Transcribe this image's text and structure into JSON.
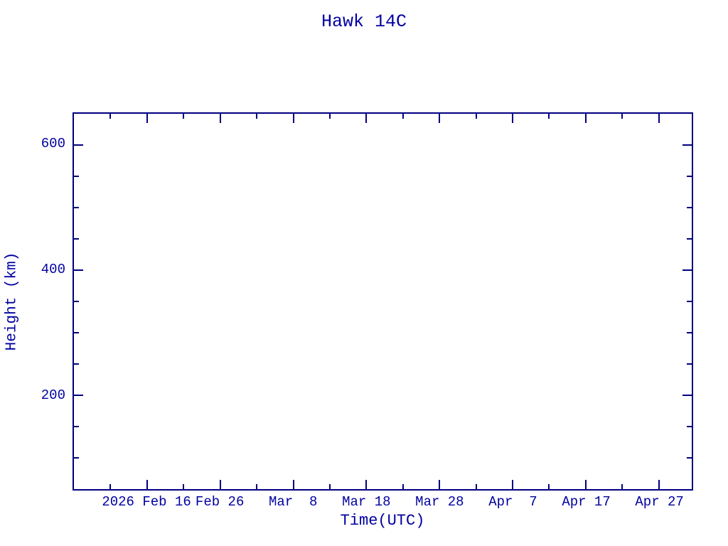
{
  "chart_data": {
    "type": "scatter",
    "title": "Hawk 14C",
    "xlabel": "Time(UTC)",
    "ylabel": "Height (km)",
    "grid": false,
    "series": [],
    "x_axis": {
      "unit": "date (UTC)",
      "span_days": 84.5,
      "major_ticks": [
        {
          "label": "2026 Feb 16",
          "day": 10
        },
        {
          "label": "Feb 26",
          "day": 20
        },
        {
          "label": "Mar  8",
          "day": 30
        },
        {
          "label": "Mar 18",
          "day": 40
        },
        {
          "label": "Mar 28",
          "day": 50
        },
        {
          "label": "Apr  7",
          "day": 60
        },
        {
          "label": "Apr 17",
          "day": 70
        },
        {
          "label": "Apr 27",
          "day": 80
        }
      ],
      "minor_tick_days": [
        5,
        15,
        25,
        35,
        45,
        55,
        65,
        75
      ]
    },
    "y_axis": {
      "unit": "km",
      "range": [
        50,
        650
      ],
      "major_ticks": [
        {
          "label": "600",
          "value": 600
        },
        {
          "label": "400",
          "value": 400
        },
        {
          "label": "200",
          "value": 200
        }
      ],
      "minor_tick_values": [
        100,
        150,
        250,
        300,
        350,
        450,
        500,
        550
      ]
    },
    "colors": {
      "axis": "#000080",
      "text": "#0000A0",
      "background": "#ffffff"
    }
  }
}
